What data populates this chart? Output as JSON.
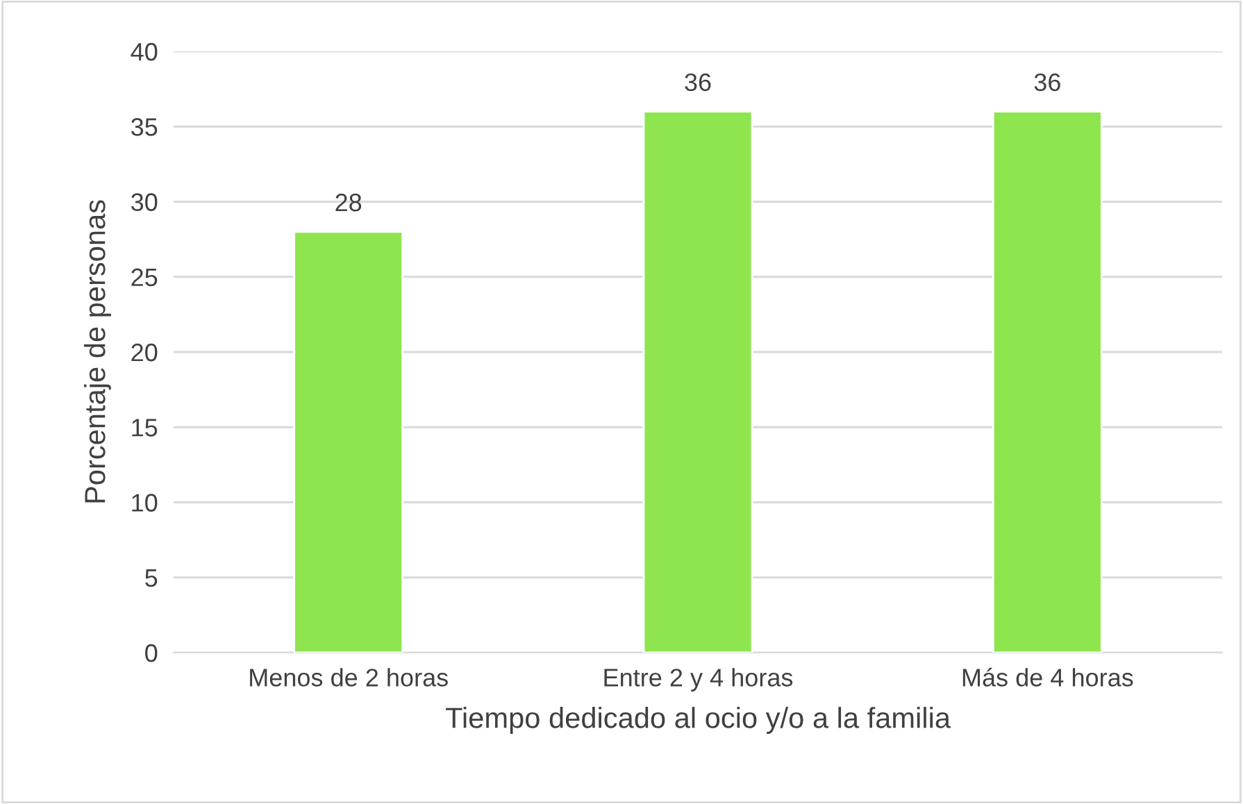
{
  "chart_data": {
    "type": "bar",
    "xlabel": "Tiempo dedicado al ocio y/o a la familia",
    "ylabel": "Porcentaje de personas",
    "categories": [
      "Menos de 2 horas",
      "Entre 2 y 4 horas",
      "Más de 4 horas"
    ],
    "values": [
      28,
      36,
      36
    ],
    "color": "#8ee54e",
    "ylim": [
      0,
      40
    ],
    "yticks": [
      0,
      5,
      10,
      15,
      20,
      25,
      30,
      35,
      40
    ],
    "grid": "y",
    "data_labels": true,
    "legend": false
  }
}
